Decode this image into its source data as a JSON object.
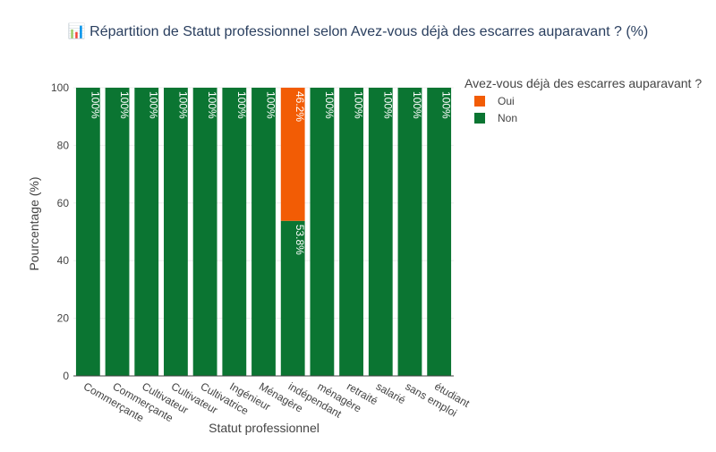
{
  "chart_data": {
    "type": "bar",
    "stacked": true,
    "title": "📊 Répartition de Statut professionnel selon Avez-vous déjà des escarres auparavant ? (%)",
    "xlabel": "Statut professionnel",
    "ylabel": "Pourcentage (%)",
    "ylim": [
      0,
      100
    ],
    "yticks": [
      0,
      20,
      40,
      60,
      80,
      100
    ],
    "grid": true,
    "legend_title": "Avez-vous déjà des escarres auparavant ?",
    "legend_position": "top-right",
    "categories": [
      "Commerçante",
      "Commerçante",
      "Cultivateur",
      "Cultivateur",
      "Cultivatrice",
      "Ingénieur",
      "Ménagère",
      "indépendant",
      "ménagère",
      "retraité",
      "salarié",
      "sans emploi",
      "étudiant"
    ],
    "series": [
      {
        "name": "Non",
        "color": "#0b7532",
        "values": [
          100,
          100,
          100,
          100,
          100,
          100,
          100,
          53.8,
          100,
          100,
          100,
          100,
          100
        ],
        "labels": [
          "100%",
          "100%",
          "100%",
          "100%",
          "100%",
          "100%",
          "100%",
          "53.8%",
          "100%",
          "100%",
          "100%",
          "100%",
          "100%"
        ]
      },
      {
        "name": "Oui",
        "color": "#f25c05",
        "values": [
          0,
          0,
          0,
          0,
          0,
          0,
          0,
          46.2,
          0,
          0,
          0,
          0,
          0
        ],
        "labels": [
          "",
          "",
          "",
          "",
          "",
          "",
          "",
          "46.2%",
          "",
          "",
          "",
          "",
          ""
        ]
      }
    ],
    "legend_order": [
      "Oui",
      "Non"
    ]
  }
}
